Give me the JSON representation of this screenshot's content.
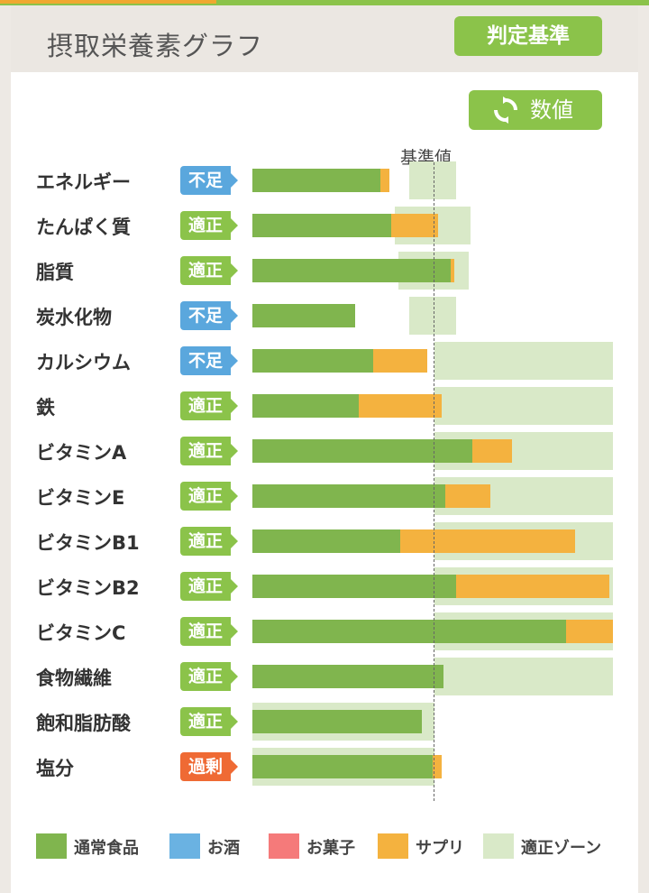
{
  "header": {
    "title": "摂取栄養素グラフ",
    "criteria_button": "判定基準"
  },
  "controls": {
    "value_button": "数値",
    "refresh_icon": "refresh-icon"
  },
  "chart_data": {
    "type": "bar",
    "orientation": "horizontal",
    "stacked": true,
    "reference_label": "基準値",
    "categories": [
      "エネルギー",
      "たんぱく質",
      "脂質",
      "炭水化物",
      "カルシウム",
      "鉄",
      "ビタミンA",
      "ビタミンE",
      "ビタミンB1",
      "ビタミンB2",
      "ビタミンC",
      "食物繊維",
      "飽和脂肪酸",
      "塩分"
    ],
    "status": [
      "不足",
      "適正",
      "適正",
      "不足",
      "不足",
      "適正",
      "適正",
      "適正",
      "適正",
      "適正",
      "適正",
      "適正",
      "適正",
      "過剰"
    ],
    "status_colors": {
      "不足": "#5aa7dd",
      "適正": "#8bc34a",
      "過剰": "#ef6a34"
    },
    "series": [
      {
        "name": "通常食品",
        "color": "#80b54e",
        "values": [
          71,
          77,
          110,
          57,
          67,
          59,
          122,
          107,
          82,
          113,
          174,
          106,
          94,
          100
        ]
      },
      {
        "name": "サプリ",
        "color": "#f4b23f",
        "values": [
          5,
          26,
          2,
          0,
          30,
          46,
          22,
          25,
          97,
          85,
          26,
          0,
          0,
          5
        ]
      }
    ],
    "zone": [
      [
        87,
        113
      ],
      [
        79,
        121
      ],
      [
        81,
        120
      ],
      [
        87,
        113
      ],
      [
        101,
        200
      ],
      [
        101,
        200
      ],
      [
        101,
        200
      ],
      [
        101,
        200
      ],
      [
        101,
        200
      ],
      [
        101,
        200
      ],
      [
        101,
        200
      ],
      [
        101,
        200
      ],
      [
        0,
        101
      ],
      [
        0,
        101
      ]
    ],
    "reference_value": 101,
    "xlim": [
      0,
      200
    ],
    "legend": [
      {
        "name": "通常食品",
        "color": "#80b54e"
      },
      {
        "name": "お酒",
        "color": "#6ab2e2"
      },
      {
        "name": "お菓子",
        "color": "#f57a7a"
      },
      {
        "name": "サプリ",
        "color": "#f4b23f"
      },
      {
        "name": "適正ゾーン",
        "color": "#d9e9c8"
      }
    ]
  }
}
